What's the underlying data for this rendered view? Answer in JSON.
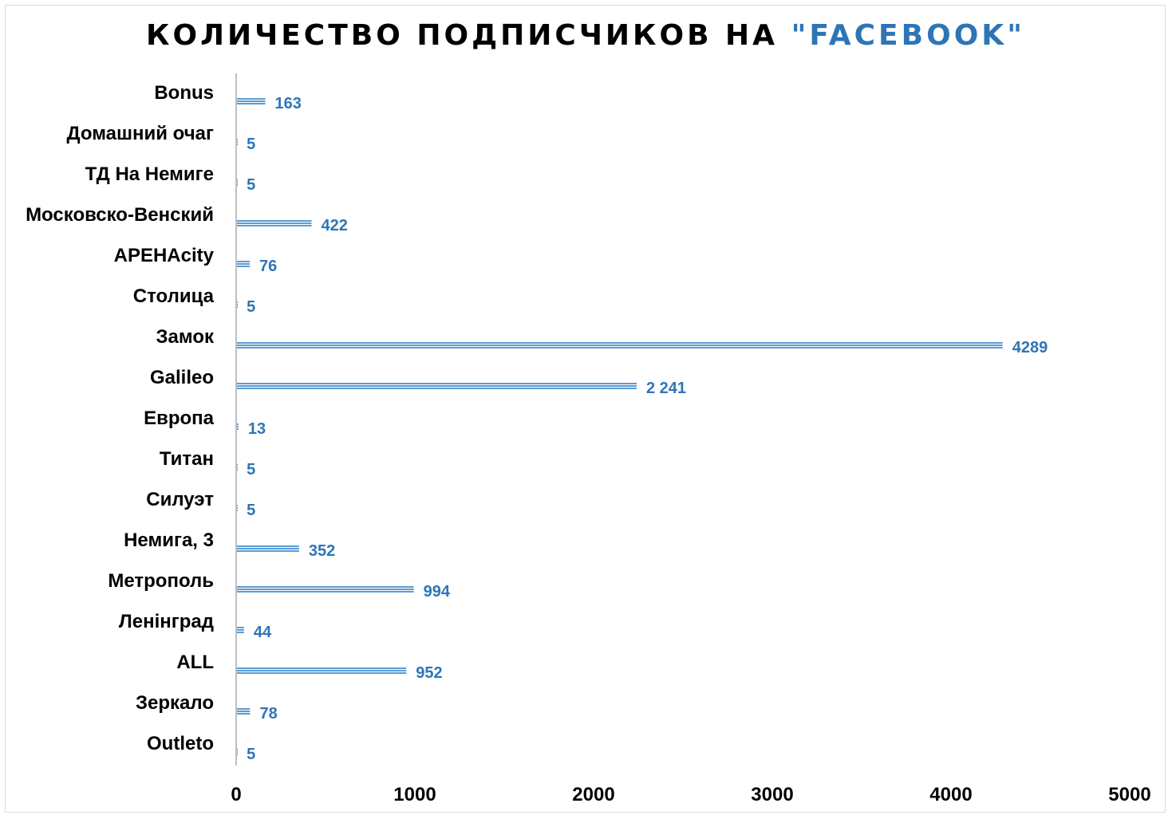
{
  "chart_data": {
    "type": "bar",
    "orientation": "horizontal",
    "title_main": "КОЛИЧЕСТВО ПОДПИСЧИКОВ НА ",
    "title_accent": "\"FACEBOOK\"",
    "categories": [
      "Bonus",
      "Домашний очаг",
      "ТД На Немиге",
      "Московско-Венский",
      "АРЕНAcity",
      "Столица",
      "Замок",
      "Galileo",
      "Европа",
      "Титан",
      "Силуэт",
      "Немига, 3",
      "Метрополь",
      "Ленінград",
      "ALL",
      "Зеркало",
      "Outleto"
    ],
    "values": [
      163,
      5,
      5,
      422,
      76,
      5,
      4289,
      2241,
      13,
      5,
      5,
      352,
      994,
      44,
      952,
      78,
      5
    ],
    "value_labels": [
      "163",
      "5",
      "5",
      "422",
      "76",
      "5",
      "4289",
      "2 241",
      "13",
      "5",
      "5",
      "352",
      "994",
      "44",
      "952",
      "78",
      "5"
    ],
    "xlim": [
      0,
      5000
    ],
    "xticks": [
      "0",
      "1000",
      "2000",
      "3000",
      "4000",
      "5000"
    ],
    "xtick_values": [
      0,
      1000,
      2000,
      3000,
      4000,
      5000
    ],
    "grid": false,
    "legend": "none",
    "colors": {
      "bar": "#5b9bd5",
      "bar_stripe": "#ffffff",
      "value_label": "#2e75b6",
      "title": "#000000",
      "title_accent": "#2e75b6",
      "axis": "#bfbfbf"
    }
  }
}
